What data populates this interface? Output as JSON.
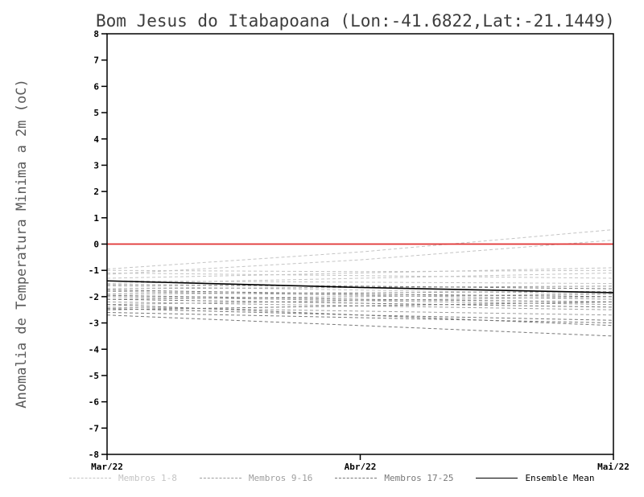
{
  "title": "Bom Jesus do Itabapoana (Lon:-41.6822,Lat:-21.1449)",
  "ylabel": "Anomalia de Temperatura Minima a 2m (oC)",
  "legend": [
    {
      "label": "Membros 1-8",
      "color": "#c4c4c4",
      "style": "dashed"
    },
    {
      "label": "Membros 9-16",
      "color": "#9e9e9e",
      "style": "dashed"
    },
    {
      "label": "Membros 17-25",
      "color": "#787878",
      "style": "dashed"
    },
    {
      "label": "Ensemble Mean",
      "color": "#000000",
      "style": "solid"
    }
  ],
  "chart_data": {
    "type": "line",
    "x_labels": [
      "Mar/22",
      "Abr/22",
      "Mai/22"
    ],
    "ylim": [
      -8,
      8
    ],
    "ytick_step": 1,
    "grid": false,
    "zero_line_color": "#e03030",
    "member_groups": [
      {
        "name": "Membros 1-8",
        "color": "#c4c4c4",
        "members": [
          [
            -0.95,
            -0.3,
            0.55
          ],
          [
            -1.15,
            -0.6,
            0.15
          ],
          [
            -1.0,
            -1.05,
            -1.0
          ],
          [
            -1.1,
            -1.2,
            -1.3
          ],
          [
            -1.3,
            -1.1,
            -0.9
          ],
          [
            -1.4,
            -1.45,
            -1.5
          ],
          [
            -1.5,
            -1.3,
            -1.1
          ],
          [
            -1.6,
            -1.75,
            -1.9
          ]
        ]
      },
      {
        "name": "Membros 9-16",
        "color": "#9e9e9e",
        "members": [
          [
            -1.7,
            -1.65,
            -1.6
          ],
          [
            -1.8,
            -1.95,
            -2.1
          ],
          [
            -1.9,
            -1.85,
            -1.8
          ],
          [
            -2.0,
            -2.15,
            -2.3
          ],
          [
            -2.1,
            -2.0,
            -1.9
          ],
          [
            -2.2,
            -2.35,
            -2.5
          ],
          [
            -2.3,
            -2.15,
            -2.0
          ],
          [
            -2.4,
            -2.55,
            -2.7
          ]
        ]
      },
      {
        "name": "Membros 17-25",
        "color": "#787878",
        "members": [
          [
            -2.5,
            -2.35,
            -2.2
          ],
          [
            -2.6,
            -2.8,
            -3.0
          ],
          [
            -2.7,
            -3.1,
            -3.5
          ],
          [
            -2.45,
            -2.7,
            -2.9
          ],
          [
            -2.3,
            -2.7,
            -3.1
          ],
          [
            -2.1,
            -2.25,
            -2.4
          ],
          [
            -1.95,
            -2.1,
            -2.2
          ],
          [
            -1.75,
            -1.9,
            -2.0
          ],
          [
            -1.55,
            -1.6,
            -1.7
          ]
        ]
      }
    ],
    "ensemble_mean": {
      "name": "Ensemble Mean",
      "color": "#000000",
      "values": [
        -1.4,
        -1.65,
        -1.85
      ]
    }
  }
}
